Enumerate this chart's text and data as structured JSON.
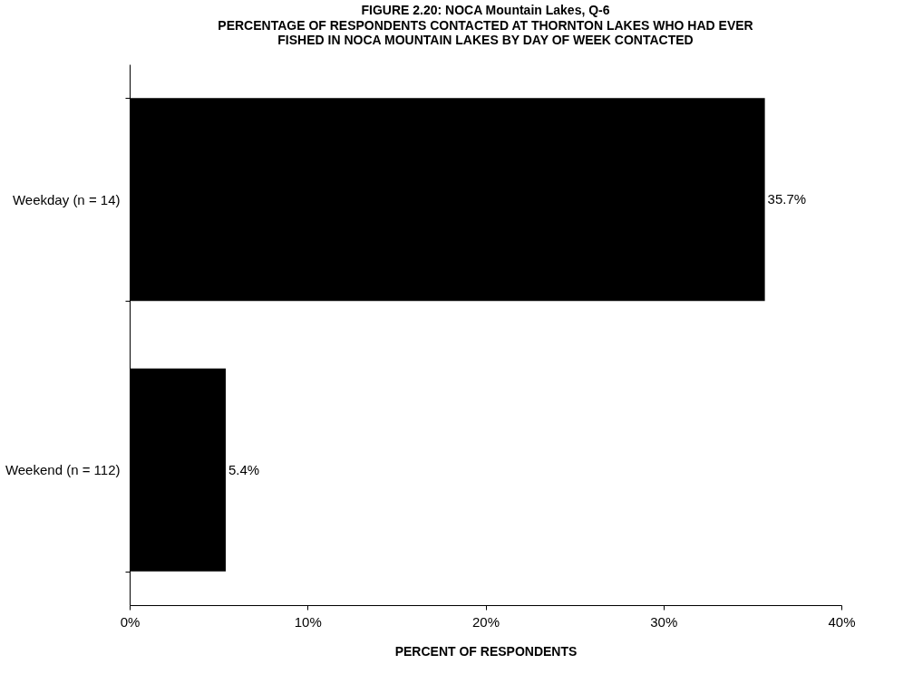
{
  "chart_data": {
    "type": "bar",
    "orientation": "horizontal",
    "title": "FIGURE 2.20:  NOCA Mountain Lakes, Q-6",
    "subtitle": "PERCENTAGE OF RESPONDENTS CONTACTED AT THORNTON LAKES WHO HAD EVER FISHED IN NOCA MOUNTAIN LAKES BY DAY OF WEEK CONTACTED",
    "xlabel": "PERCENT OF RESPONDENTS",
    "categories": [
      "Weekday (n = 14)",
      "Weekend (n = 112)"
    ],
    "values": [
      35.7,
      5.4
    ],
    "value_labels": [
      "35.7%",
      "5.4%"
    ],
    "color": "#000000",
    "xlim": [
      0,
      40
    ],
    "xticks": [
      {
        "value": 0,
        "label": "0%"
      },
      {
        "value": 10,
        "label": "10%"
      },
      {
        "value": 20,
        "label": "20%"
      },
      {
        "value": 30,
        "label": "30%"
      },
      {
        "value": 40,
        "label": "40%"
      }
    ],
    "grid": false
  }
}
